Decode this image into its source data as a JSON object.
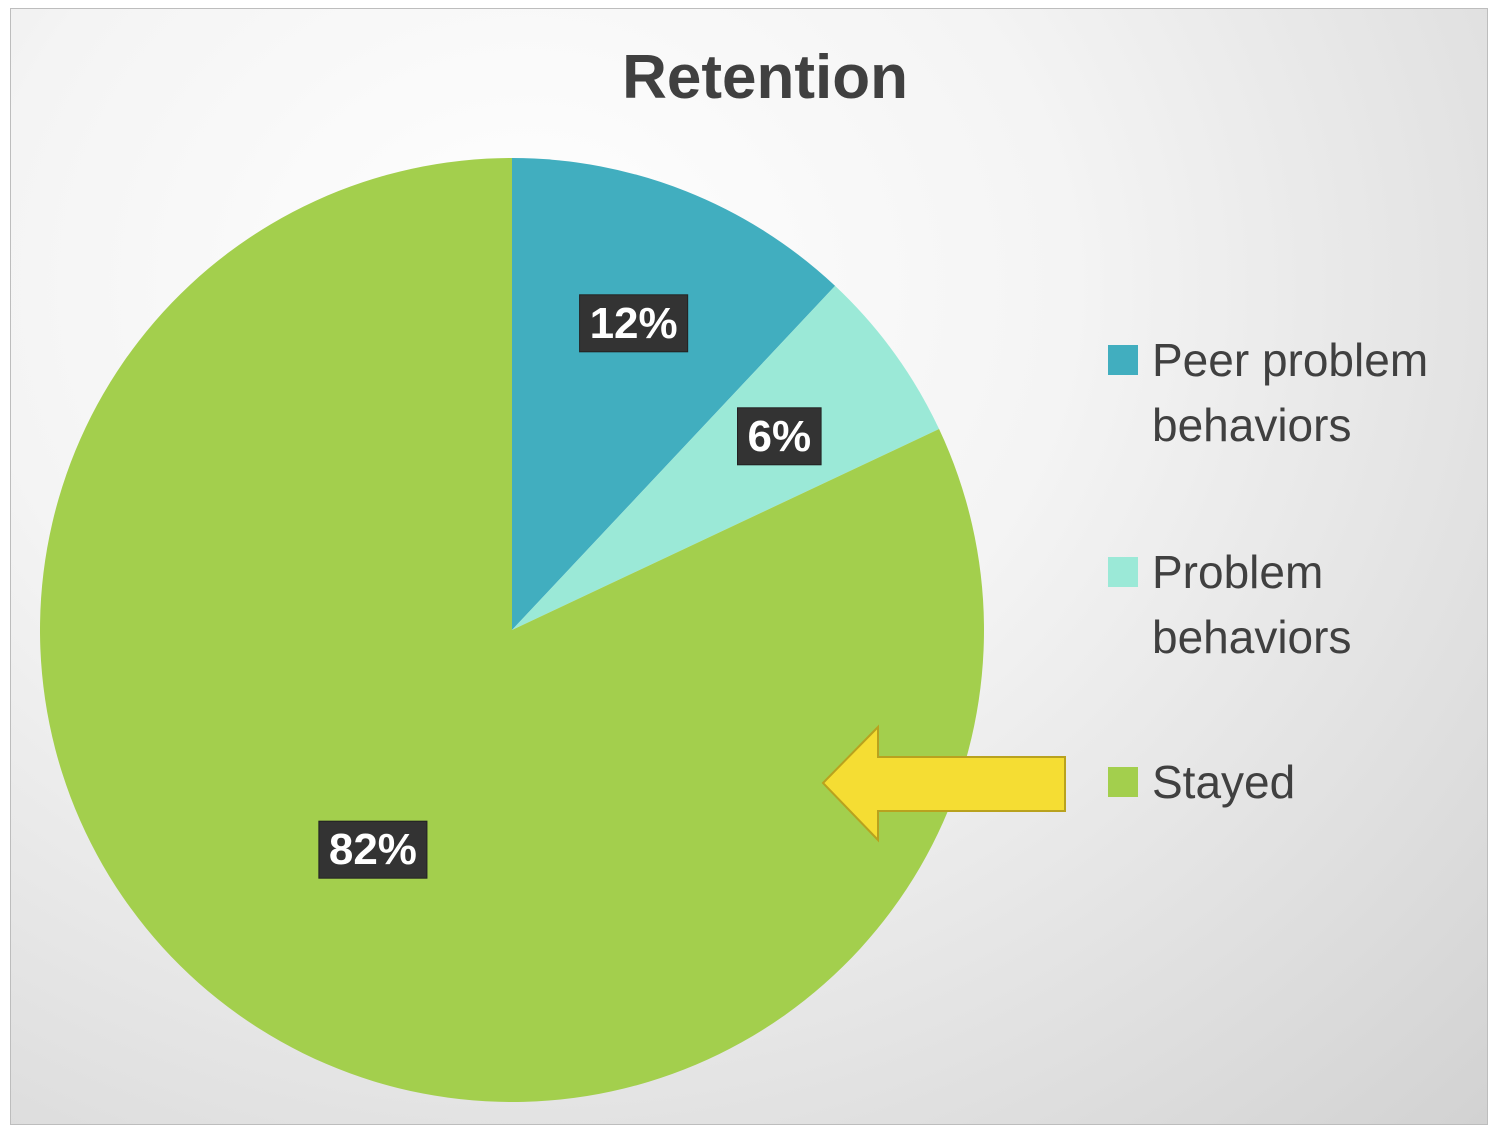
{
  "chart_data": {
    "type": "pie",
    "title": "Retention",
    "categories": [
      "Peer problem behaviors",
      "Problem behaviors",
      "Stayed"
    ],
    "values": [
      12,
      6,
      82
    ],
    "value_labels": [
      "12%",
      "6%",
      "82%"
    ],
    "colors": [
      "#41aebf",
      "#9be9d7",
      "#a3cf4d"
    ],
    "legend": "right"
  }
}
